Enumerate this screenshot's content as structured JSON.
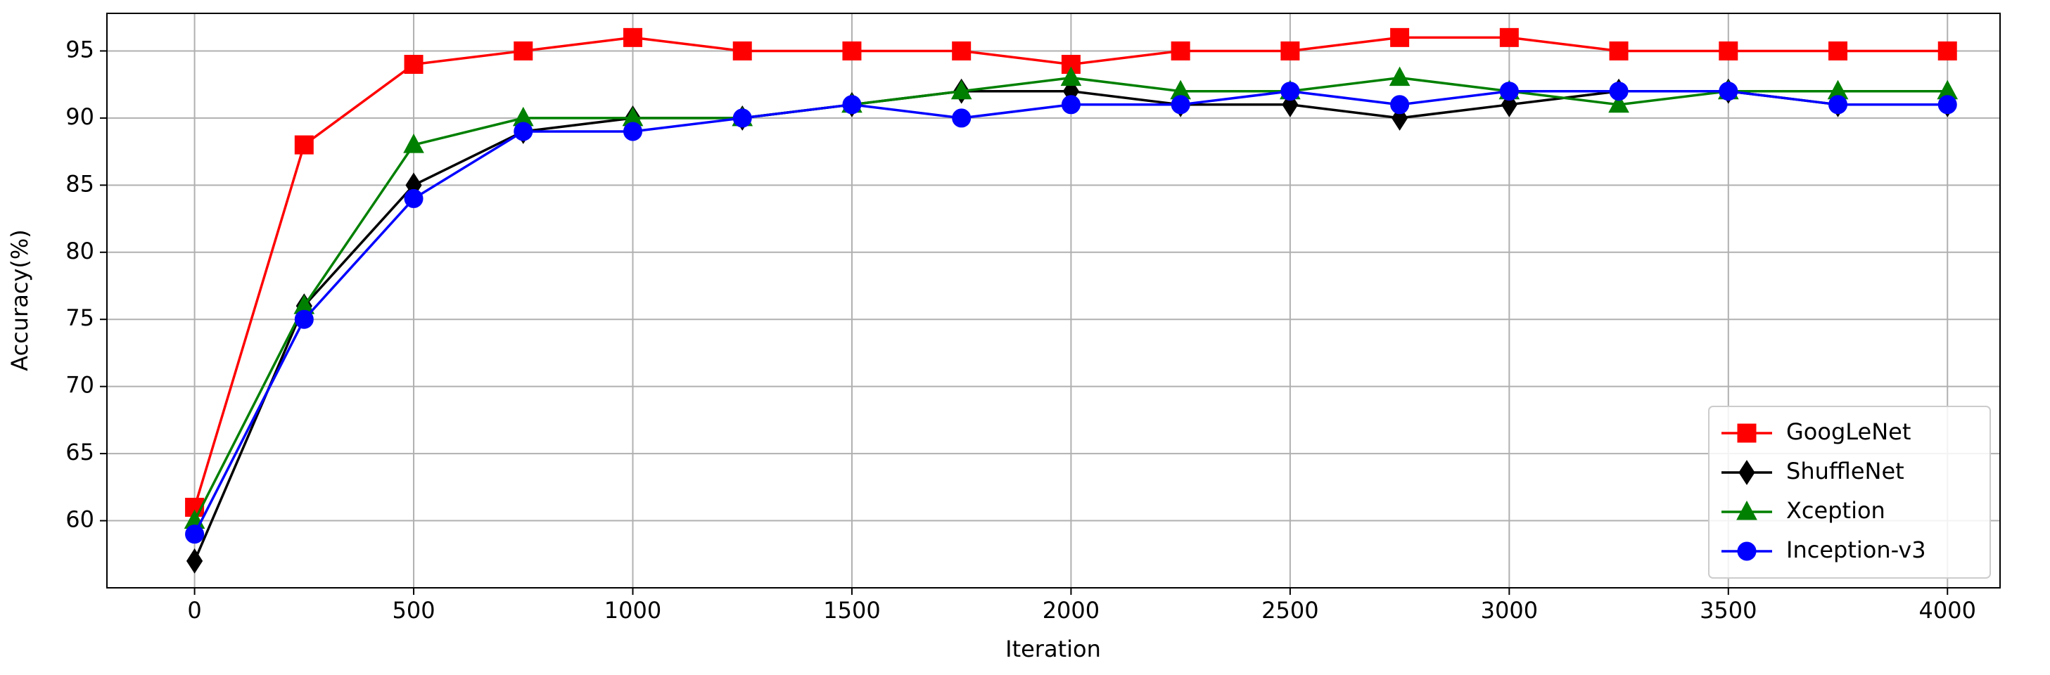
{
  "chart_data": {
    "type": "line",
    "x_label": "Iteration",
    "y_label": "Accuracy(%)",
    "x": [
      0,
      250,
      500,
      750,
      1000,
      1250,
      1500,
      1750,
      2000,
      2250,
      2500,
      2750,
      3000,
      3250,
      3500,
      3750,
      4000
    ],
    "series": [
      {
        "name": "GoogLeNet",
        "color": "#ff0000",
        "marker": "square",
        "values": [
          61,
          88,
          94,
          95,
          96,
          95,
          95,
          95,
          94,
          95,
          95,
          96,
          96,
          95,
          95,
          95,
          95
        ]
      },
      {
        "name": "ShuffleNet",
        "color": "#000000",
        "marker": "diamond",
        "values": [
          57,
          76,
          85,
          89,
          90,
          90,
          91,
          92,
          92,
          91,
          91,
          90,
          91,
          92,
          92,
          91,
          91
        ]
      },
      {
        "name": "Xception",
        "color": "#008000",
        "marker": "triangle",
        "values": [
          60,
          76,
          88,
          90,
          90,
          90,
          91,
          92,
          93,
          92,
          92,
          93,
          92,
          91,
          92,
          92,
          92
        ]
      },
      {
        "name": "Inception-v3",
        "color": "#0000ff",
        "marker": "circle",
        "values": [
          59,
          75,
          84,
          89,
          89,
          90,
          91,
          90,
          91,
          91,
          92,
          91,
          92,
          92,
          92,
          91,
          91
        ]
      }
    ],
    "xlim": [
      -200,
      4120
    ],
    "xticks": [
      0,
      500,
      1000,
      1500,
      2000,
      2500,
      3000,
      3500,
      4000
    ],
    "ylim": [
      55,
      97.8
    ],
    "yticks": [
      60,
      65,
      70,
      75,
      80,
      85,
      90,
      95
    ],
    "grid": true,
    "legend": "lower right"
  }
}
